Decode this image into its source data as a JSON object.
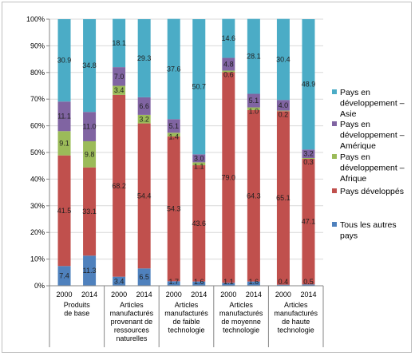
{
  "chart_data": {
    "type": "bar",
    "stacked": true,
    "ylim": [
      0,
      100
    ],
    "y_tick_labels": [
      "0%",
      "10%",
      "20%",
      "30%",
      "40%",
      "50%",
      "60%",
      "70%",
      "80%",
      "90%",
      "100%"
    ],
    "groups": [
      {
        "label": [
          "Produits",
          "de base"
        ],
        "years": [
          "2000",
          "2014"
        ]
      },
      {
        "label": [
          "Articles",
          "manufacturés",
          "provenant de",
          "ressources",
          "naturelles"
        ],
        "years": [
          "2000",
          "2014"
        ]
      },
      {
        "label": [
          "Articles",
          "manufacturés",
          "de faible",
          "technologie"
        ],
        "years": [
          "2000",
          "2014"
        ]
      },
      {
        "label": [
          "Articles",
          "manufacturés",
          "de moyenne",
          "technologie"
        ],
        "years": [
          "2000",
          "2014"
        ]
      },
      {
        "label": [
          "Articles",
          "manufacturés",
          "de haute",
          "technologie"
        ],
        "years": [
          "2000",
          "2014"
        ]
      }
    ],
    "series": [
      {
        "name": "Tous les autres pays",
        "color": "#4f81bd",
        "values": [
          7.4,
          11.3,
          3.4,
          6.5,
          1.7,
          1.6,
          1.1,
          1.6,
          0.4,
          0.5
        ],
        "labels": [
          "7.4",
          "11.3",
          "3.4",
          "6.5",
          "1.7",
          "1.6",
          "1.1",
          "1.6",
          "0.4",
          "0.5"
        ]
      },
      {
        "name": "Pays développés",
        "color": "#c0504d",
        "values": [
          41.5,
          33.1,
          68.2,
          54.4,
          54.3,
          43.6,
          79.0,
          64.3,
          65.1,
          47.1
        ],
        "labels": [
          "41.5",
          "33.1",
          "68.2",
          "54.4",
          "54.3",
          "43.6",
          "79.0",
          "64.3",
          "65.1",
          "47.1"
        ]
      },
      {
        "name": "Pays en développement – Afrique",
        "color": "#9bbb59",
        "values": [
          9.1,
          9.8,
          3.4,
          3.2,
          1.4,
          1.1,
          0.6,
          1.0,
          0.2,
          0.3
        ],
        "labels": [
          "9.1",
          "9.8",
          "3.4",
          "3.2",
          "1.4",
          "1.1",
          "0.6",
          "1.0",
          "0.2",
          "0.3"
        ]
      },
      {
        "name": "Pays en développement – Amérique",
        "color": "#8064a2",
        "values": [
          11.1,
          11.0,
          7.0,
          6.6,
          5.1,
          3.0,
          4.8,
          5.1,
          4.0,
          3.2
        ],
        "labels": [
          "11.1",
          "11.0",
          "7.0",
          "6.6",
          "5.1",
          "3.0",
          "4.8",
          "5.1",
          "4.0",
          "3.2"
        ]
      },
      {
        "name": "Pays en développement – Asie",
        "color": "#4bacc6",
        "values": [
          30.9,
          34.8,
          18.1,
          29.3,
          37.6,
          50.7,
          14.6,
          28.1,
          30.4,
          48.9
        ],
        "labels": [
          "30.9",
          "34.8",
          "18.1",
          "29.3",
          "37.6",
          "50.7",
          "14.6",
          "28.1",
          "30.4",
          "48.9"
        ]
      }
    ],
    "legend": {
      "position": "right",
      "order": [
        4,
        3,
        2,
        1,
        0
      ],
      "lines": [
        [
          "Pays en",
          "développement –",
          "Asie"
        ],
        [
          "Pays en",
          "développement –",
          "Amérique"
        ],
        [
          "Pays en",
          "développement –",
          "Afrique"
        ],
        [
          "Pays développés"
        ],
        [
          "Tous les autres",
          "pays"
        ]
      ]
    },
    "grid": true
  }
}
